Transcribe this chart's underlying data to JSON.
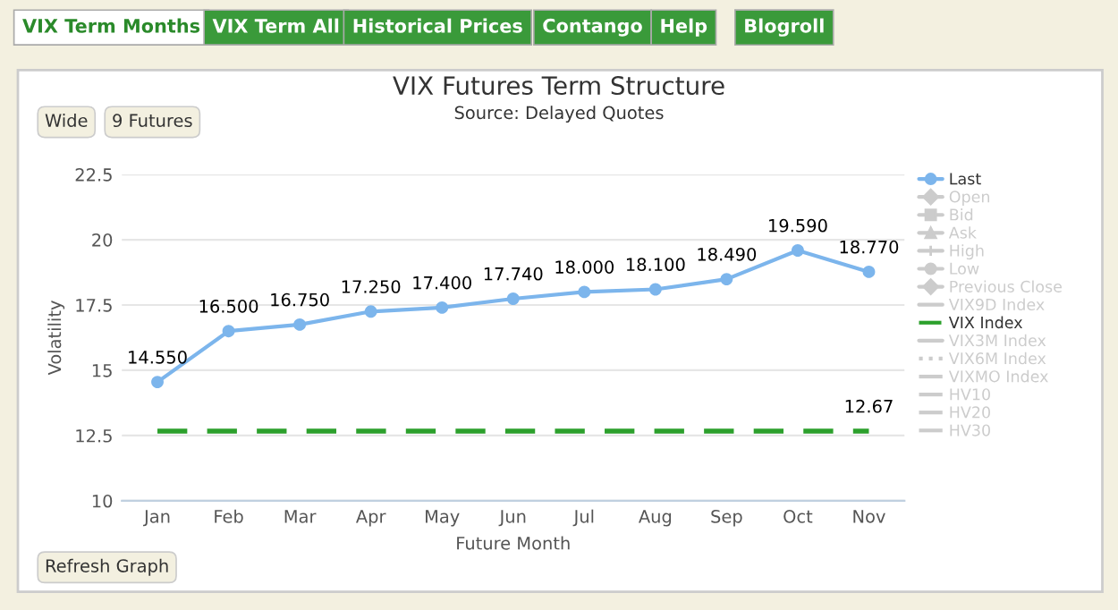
{
  "chart_data": {
    "type": "line",
    "title": "VIX Futures Term Structure",
    "subtitle": "Source: Delayed Quotes",
    "xlabel": "Future Month",
    "ylabel": "Volatility",
    "categories": [
      "Jan",
      "Feb",
      "Mar",
      "Apr",
      "May",
      "Jun",
      "Jul",
      "Aug",
      "Sep",
      "Oct",
      "Nov"
    ],
    "ylim": [
      10,
      22.5
    ],
    "yticks": [
      10,
      12.5,
      15,
      17.5,
      20,
      22.5
    ],
    "grid": "y",
    "legend": "right",
    "series": [
      {
        "name": "Last",
        "color": "#7cb5ec",
        "marker": "circle",
        "line_style": "solid",
        "values": [
          14.55,
          16.5,
          16.75,
          17.25,
          17.4,
          17.74,
          18.0,
          18.1,
          18.49,
          19.59,
          18.77
        ],
        "value_labels": [
          "14.550",
          "16.500",
          "16.750",
          "17.250",
          "17.400",
          "17.740",
          "18.000",
          "18.100",
          "18.490",
          "19.590",
          "18.770"
        ]
      },
      {
        "name": "Open",
        "color": "#cccccc",
        "marker": "diamond",
        "line_style": "solid",
        "values": [
          null,
          null,
          null,
          null,
          null,
          null,
          null,
          null,
          null,
          null,
          null
        ]
      },
      {
        "name": "Bid",
        "color": "#cccccc",
        "marker": "square",
        "line_style": "solid",
        "values": [
          null,
          null,
          null,
          null,
          null,
          null,
          null,
          null,
          null,
          null,
          null
        ]
      },
      {
        "name": "Ask",
        "color": "#cccccc",
        "marker": "triangle",
        "line_style": "solid",
        "values": [
          null,
          null,
          null,
          null,
          null,
          null,
          null,
          null,
          null,
          null,
          null
        ]
      },
      {
        "name": "High",
        "color": "#cccccc",
        "marker": "cross",
        "line_style": "solid",
        "values": [
          null,
          null,
          null,
          null,
          null,
          null,
          null,
          null,
          null,
          null,
          null
        ]
      },
      {
        "name": "Low",
        "color": "#cccccc",
        "marker": "circle",
        "line_style": "solid",
        "values": [
          null,
          null,
          null,
          null,
          null,
          null,
          null,
          null,
          null,
          null,
          null
        ]
      },
      {
        "name": "Previous Close",
        "color": "#cccccc",
        "marker": "diamond",
        "line_style": "solid",
        "values": [
          null,
          null,
          null,
          null,
          null,
          null,
          null,
          null,
          null,
          null,
          null
        ]
      },
      {
        "name": "VIX9D Index",
        "color": "#cccccc",
        "marker": "none",
        "line_style": "solid",
        "values": [
          null,
          null,
          null,
          null,
          null,
          null,
          null,
          null,
          null,
          null,
          null
        ]
      },
      {
        "name": "VIX Index",
        "color": "#2ca02c",
        "marker": "none",
        "line_style": "dashed",
        "values": [
          12.67,
          12.67,
          12.67,
          12.67,
          12.67,
          12.67,
          12.67,
          12.67,
          12.67,
          12.67,
          12.67
        ],
        "value_labels": [
          null,
          null,
          null,
          null,
          null,
          null,
          null,
          null,
          null,
          null,
          "12.67"
        ]
      },
      {
        "name": "VIX3M Index",
        "color": "#cccccc",
        "marker": "none",
        "line_style": "solid",
        "values": [
          null,
          null,
          null,
          null,
          null,
          null,
          null,
          null,
          null,
          null,
          null
        ]
      },
      {
        "name": "VIX6M Index",
        "color": "#cccccc",
        "marker": "none",
        "line_style": "dotted",
        "values": [
          null,
          null,
          null,
          null,
          null,
          null,
          null,
          null,
          null,
          null,
          null
        ]
      },
      {
        "name": "VIXMO Index",
        "color": "#cccccc",
        "marker": "none",
        "line_style": "dashdot",
        "values": [
          null,
          null,
          null,
          null,
          null,
          null,
          null,
          null,
          null,
          null,
          null
        ]
      },
      {
        "name": "HV10",
        "color": "#cccccc",
        "marker": "none",
        "line_style": "dashdot",
        "values": [
          null,
          null,
          null,
          null,
          null,
          null,
          null,
          null,
          null,
          null,
          null
        ]
      },
      {
        "name": "HV20",
        "color": "#cccccc",
        "marker": "none",
        "line_style": "dashdot",
        "values": [
          null,
          null,
          null,
          null,
          null,
          null,
          null,
          null,
          null,
          null,
          null
        ]
      },
      {
        "name": "HV30",
        "color": "#cccccc",
        "marker": "none",
        "line_style": "dashdot",
        "values": [
          null,
          null,
          null,
          null,
          null,
          null,
          null,
          null,
          null,
          null,
          null
        ]
      }
    ],
    "annotations": [
      "VIX Term Months",
      "VIX Term All",
      "Historical Prices",
      "Contango",
      "Help",
      "Blogroll",
      "Wide",
      "9 Futures",
      "Refresh Graph"
    ]
  }
}
